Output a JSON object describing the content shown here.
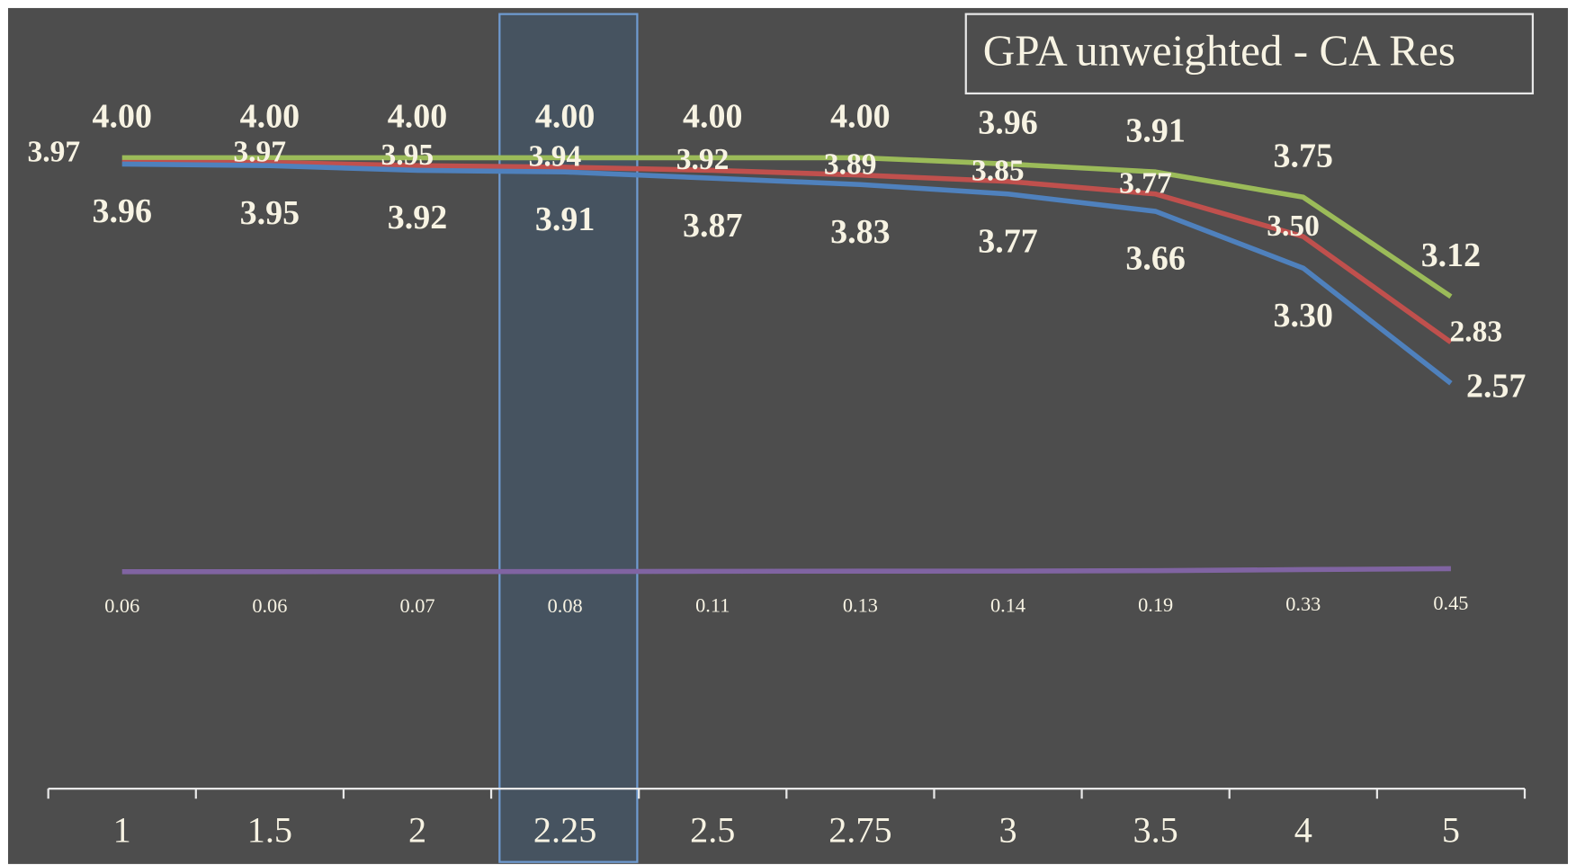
{
  "chart_data": {
    "type": "line",
    "title": "GPA unweighted - CA Res",
    "categories": [
      "1",
      "1.5",
      "2",
      "2.25",
      "2.5",
      "2.75",
      "3",
      "3.5",
      "4",
      "5"
    ],
    "ylim": [
      0,
      5
    ],
    "y2lim": [
      -28,
      74
    ],
    "series": [
      {
        "color": "#9bbb59",
        "values": [
          4.0,
          4.0,
          4.0,
          4.0,
          4.0,
          4.0,
          3.96,
          3.91,
          3.75,
          3.12
        ],
        "value_labels": [
          "4.00",
          "4.00",
          "4.00",
          "4.00",
          "4.00",
          "4.00",
          "3.96",
          "3.91",
          "3.75",
          "3.12"
        ]
      },
      {
        "color": "#c0504d",
        "values": [
          3.97,
          3.97,
          3.95,
          3.94,
          3.92,
          3.89,
          3.85,
          3.77,
          3.5,
          2.83
        ],
        "value_labels": [
          "3.97",
          "3.97",
          "3.95",
          "3.94",
          "3.92",
          "3.89",
          "3.85",
          "3.77",
          "3.50",
          "2.83"
        ]
      },
      {
        "color": "#4f81bd",
        "values": [
          3.96,
          3.95,
          3.92,
          3.91,
          3.87,
          3.83,
          3.77,
          3.66,
          3.3,
          2.57
        ],
        "value_labels": [
          "3.96",
          "3.95",
          "3.92",
          "3.91",
          "3.87",
          "3.83",
          "3.77",
          "3.66",
          "3.30",
          "2.57"
        ]
      },
      {
        "color": "#8064a2",
        "axis": "y2",
        "values": [
          0.06,
          0.06,
          0.07,
          0.08,
          0.11,
          0.13,
          0.14,
          0.19,
          0.33,
          0.45
        ]
      }
    ]
  }
}
